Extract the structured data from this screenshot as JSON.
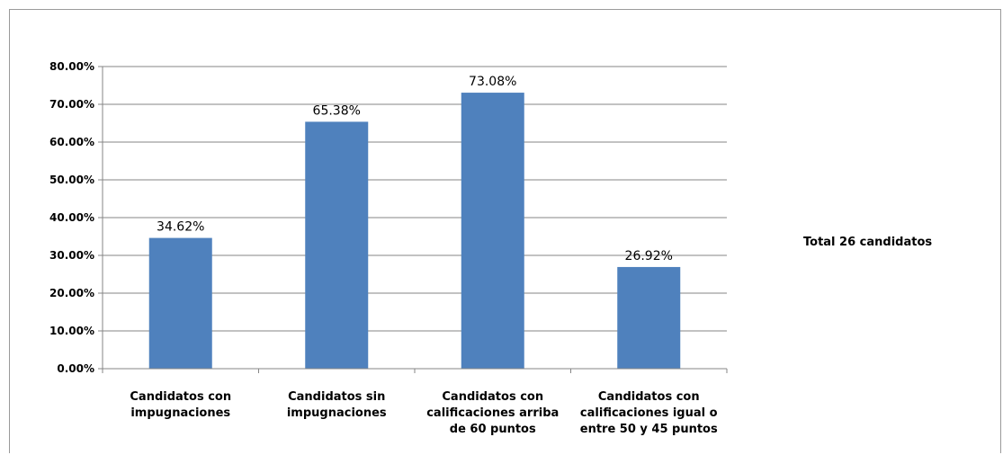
{
  "chart_data": {
    "type": "bar",
    "categories": [
      [
        "Candidatos con",
        "impugnaciones"
      ],
      [
        "Candidatos sin",
        "impugnaciones"
      ],
      [
        "Candidatos con",
        "calificaciones arriba",
        "de 60 puntos"
      ],
      [
        "Candidatos con",
        "calificaciones  igual o",
        "entre 50 y 45 puntos"
      ]
    ],
    "values": [
      34.62,
      65.38,
      73.08,
      26.92
    ],
    "data_labels": [
      "34.62%",
      "65.38%",
      "73.08%",
      "26.92%"
    ],
    "y_ticks": [
      "0.00%",
      "10.00%",
      "20.00%",
      "30.00%",
      "40.00%",
      "50.00%",
      "60.00%",
      "70.00%",
      "80.00%"
    ],
    "ylim": [
      0,
      80
    ],
    "grid": true,
    "bar_color": "#4f81bd",
    "grid_color": "#868686",
    "legend": "none"
  },
  "side_note": "Total 26 candidatos"
}
